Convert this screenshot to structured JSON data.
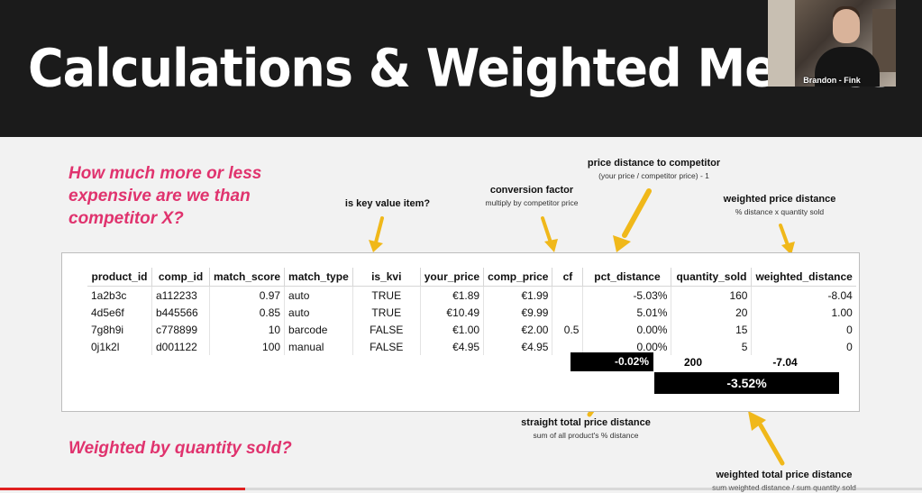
{
  "slide": {
    "title": "Calculations & Weighted Metrics",
    "question_top": "How much more or less expensive are we than competitor X?",
    "question_bottom": "Weighted by quantity sold?"
  },
  "presenter": {
    "name": "Brandon - Fink"
  },
  "annotations": {
    "kvi": {
      "heading": "is key value item?"
    },
    "conversion": {
      "heading": "conversion factor",
      "sub": "multiply by competitor price"
    },
    "price_distance": {
      "heading": "price distance to competitor",
      "sub": "(your price / competitor price) - 1"
    },
    "weighted": {
      "heading": "weighted price distance",
      "sub": "% distance x quantity sold"
    },
    "straight_total": {
      "heading": "straight total price distance",
      "sub": "sum of all product's % distance"
    },
    "weighted_total": {
      "heading": "weighted total price distance",
      "sub": "sum weighted distance / sum quantity sold"
    }
  },
  "table": {
    "headers": [
      "product_id",
      "comp_id",
      "match_score",
      "match_type",
      "is_kvi",
      "your_price",
      "comp_price",
      "cf",
      "pct_distance",
      "quantity_sold",
      "weighted_distance"
    ],
    "rows": [
      [
        "1a2b3c",
        "a112233",
        "0.97",
        "auto",
        "TRUE",
        "€1.89",
        "€1.99",
        "",
        "-5.03%",
        "160",
        "-8.04"
      ],
      [
        "4d5e6f",
        "b445566",
        "0.85",
        "auto",
        "TRUE",
        "€10.49",
        "€9.99",
        "",
        "5.01%",
        "20",
        "1.00"
      ],
      [
        "7g8h9i",
        "c778899",
        "10",
        "barcode",
        "FALSE",
        "€1.00",
        "€2.00",
        "0.5",
        "0.00%",
        "15",
        "0"
      ],
      [
        "0j1k2l",
        "d001122",
        "100",
        "manual",
        "FALSE",
        "€4.95",
        "€4.95",
        "",
        "0.00%",
        "5",
        "0"
      ]
    ]
  },
  "totals": {
    "straight_pct": "-0.02%",
    "quantity_sum": "200",
    "weighted_sum": "-7.04",
    "weighted_pct": "-3.52%"
  },
  "colors": {
    "accent": "#e0336e",
    "arrow": "#f0b81a",
    "banner": "#1b1b1b"
  },
  "video": {
    "progress": 0.266
  }
}
